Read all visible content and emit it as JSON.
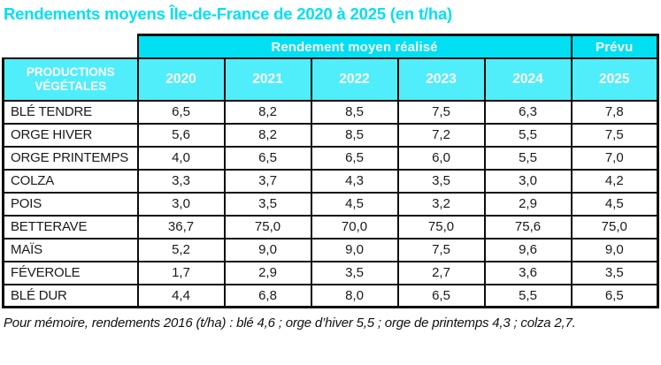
{
  "title": "Rendements moyens Île-de-France de 2020 à 2025 (en t/ha)",
  "colors": {
    "cyan_deep": "#00e0f2",
    "cyan_light": "#4feefa",
    "header_text": "#ffffff",
    "body_text": "#1a1a1a",
    "border": "#0d0d0d"
  },
  "chart_data": {
    "type": "table",
    "title": "Rendements moyens Île-de-France de 2020 à 2025 (en t/ha)",
    "unit": "t/ha",
    "group_headers": {
      "realized": "Rendement moyen réalisé",
      "forecast": "Prévu"
    },
    "corner_header": "PRODUCTIONS VÉGÉTALES",
    "years": [
      "2020",
      "2021",
      "2022",
      "2023",
      "2024",
      "2025"
    ],
    "rows": [
      {
        "label": "BLÉ TENDRE",
        "values": [
          "6,5",
          "8,2",
          "8,5",
          "7,5",
          "6,3",
          "7,8"
        ]
      },
      {
        "label": "ORGE HIVER",
        "values": [
          "5,6",
          "8,2",
          "8,5",
          "7,2",
          "5,5",
          "7,5"
        ]
      },
      {
        "label": "ORGE PRINTEMPS",
        "values": [
          "4,0",
          "6,5",
          "6,5",
          "6,0",
          "5,5",
          "7,0"
        ]
      },
      {
        "label": "COLZA",
        "values": [
          "3,3",
          "3,7",
          "4,3",
          "3,5",
          "3,0",
          "4,2"
        ]
      },
      {
        "label": "POIS",
        "values": [
          "3,0",
          "3,5",
          "4,5",
          "3,2",
          "2,9",
          "4,5"
        ]
      },
      {
        "label": "BETTERAVE",
        "values": [
          "36,7",
          "75,0",
          "70,0",
          "75,0",
          "75,6",
          "75,0"
        ]
      },
      {
        "label": "MAÏS",
        "values": [
          "5,2",
          "9,0",
          "9,0",
          "7,5",
          "9,6",
          "9,0"
        ]
      },
      {
        "label": "FÉVEROLE",
        "values": [
          "1,7",
          "2,9",
          "3,5",
          "2,7",
          "3,6",
          "3,5"
        ]
      },
      {
        "label": "BLÉ DUR",
        "values": [
          "4,4",
          "6,8",
          "8,0",
          "6,5",
          "5,5",
          "6,5"
        ]
      }
    ]
  },
  "footnote": "Pour mémoire, rendements 2016 (t/ha) : blé 4,6 ; orge d’hiver 5,5 ; orge de printemps 4,3 ; colza 2,7."
}
